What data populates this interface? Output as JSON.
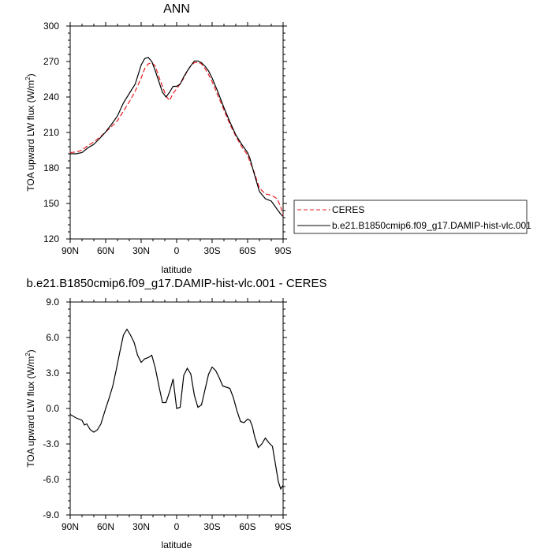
{
  "colors": {
    "ceres": "#e8191e",
    "model": "#000000",
    "axis": "#000000"
  },
  "chart_data": [
    {
      "type": "line",
      "title": "ANN",
      "xlabel": "latitude",
      "ylabel": "TOA upward LW flux (W/m²)",
      "ylabel_main": "TOA upward LW flux (W/m",
      "ylabel_sup": "2",
      "ylabel_tail": ")",
      "xlim": [
        90,
        -90
      ],
      "ylim": [
        120,
        300
      ],
      "xticks": [
        90,
        60,
        30,
        0,
        -30,
        -60,
        -90
      ],
      "xtick_labels": [
        "90N",
        "60N",
        "30N",
        "0",
        "30S",
        "60S",
        "90S"
      ],
      "yticks": [
        120,
        150,
        180,
        210,
        240,
        270,
        300
      ],
      "ytick_labels": [
        "120",
        "150",
        "180",
        "210",
        "240",
        "270",
        "300"
      ],
      "legend": {
        "position": "right",
        "entries": [
          "CERES",
          "b.e21.B1850cmip6.f09_g17.DAMIP-hist-vlc.001"
        ]
      },
      "series": [
        {
          "name": "CERES",
          "style": "dashed",
          "x": [
            90,
            85,
            80,
            75,
            70,
            65,
            60,
            55,
            50,
            45,
            40,
            35,
            30,
            27,
            24,
            21,
            18,
            15,
            12,
            9,
            6,
            3,
            0,
            -3,
            -6,
            -9,
            -12,
            -15,
            -18,
            -21,
            -24,
            -27,
            -30,
            -35,
            -40,
            -45,
            -50,
            -55,
            -60,
            -62,
            -65,
            -70,
            -75,
            -80,
            -85,
            -88,
            -90
          ],
          "y": [
            193,
            193.5,
            195,
            199,
            202,
            206,
            210.5,
            215,
            220,
            228,
            236,
            245,
            256,
            264,
            268,
            269,
            266,
            257,
            249,
            241,
            237,
            243,
            247,
            251,
            256,
            262,
            266.5,
            269,
            269.5,
            268,
            264,
            259,
            253,
            241,
            229,
            217,
            207,
            198,
            191,
            185,
            178,
            163,
            158,
            157,
            154,
            147,
            140
          ]
        },
        {
          "name": "b.e21.B1850cmip6.f09_g17.DAMIP-hist-vlc.001",
          "style": "solid",
          "x": [
            90,
            85,
            80,
            75,
            70,
            65,
            60,
            55,
            50,
            45,
            40,
            35,
            30,
            27,
            24,
            21,
            18,
            15,
            12,
            9,
            6,
            3,
            0,
            -3,
            -6,
            -9,
            -12,
            -15,
            -18,
            -21,
            -24,
            -27,
            -30,
            -35,
            -40,
            -45,
            -50,
            -55,
            -60,
            -62,
            -65,
            -70,
            -75,
            -80,
            -85,
            -88,
            -90
          ],
          "y": [
            192,
            192,
            193,
            197,
            200,
            205,
            210.5,
            217,
            224,
            235,
            243,
            251,
            267,
            272.5,
            273.5,
            270,
            262,
            253,
            244,
            240,
            244,
            249,
            249,
            251,
            257,
            262,
            266.5,
            270.5,
            270.5,
            269,
            266,
            262,
            256,
            244,
            231,
            219,
            208,
            200,
            193,
            188,
            177,
            160,
            154,
            152,
            145,
            141,
            139
          ]
        }
      ]
    },
    {
      "type": "line",
      "title": "b.e21.B1850cmip6.f09_g17.DAMIP-hist-vlc.001 - CERES",
      "xlabel": "latitude",
      "ylabel": "TOA upward LW flux (W/m²)",
      "ylabel_main": "TOA upward LW flux (W/m",
      "ylabel_sup": "2",
      "ylabel_tail": ")",
      "xlim": [
        90,
        -90
      ],
      "ylim": [
        -9,
        9
      ],
      "xticks": [
        90,
        60,
        30,
        0,
        -30,
        -60,
        -90
      ],
      "xtick_labels": [
        "90N",
        "60N",
        "30N",
        "0",
        "30S",
        "60S",
        "90S"
      ],
      "yticks": [
        -9,
        -6,
        -3,
        0,
        3,
        6,
        9
      ],
      "ytick_labels": [
        "-9.0",
        "-6.0",
        "-3.0",
        "0.0",
        "3.0",
        "6.0",
        "9.0"
      ],
      "series": [
        {
          "style": "solid",
          "x": [
            90,
            85,
            80,
            78,
            76,
            73,
            70,
            67,
            64,
            60,
            57,
            54,
            51,
            48,
            45,
            42,
            39,
            36,
            33,
            30,
            27,
            24,
            21,
            18,
            15,
            12,
            9,
            6,
            3,
            0,
            -3,
            -6,
            -9,
            -12,
            -15,
            -18,
            -21,
            -24,
            -27,
            -30,
            -33,
            -36,
            -39,
            -42,
            -45,
            -48,
            -51,
            -54,
            -57,
            -60,
            -62,
            -64,
            -66,
            -69,
            -72,
            -75,
            -78,
            -81,
            -84,
            -86,
            -88,
            -90
          ],
          "y": [
            -0.5,
            -0.8,
            -1.0,
            -1.4,
            -1.3,
            -1.8,
            -2.0,
            -1.8,
            -1.3,
            0.0,
            0.9,
            1.9,
            3.3,
            4.8,
            6.2,
            6.7,
            6.2,
            5.6,
            4.5,
            3.9,
            4.2,
            4.3,
            4.5,
            3.4,
            1.9,
            0.5,
            0.5,
            1.4,
            2.5,
            0.0,
            0.1,
            2.8,
            3.4,
            2.9,
            1.1,
            0.1,
            0.3,
            1.6,
            2.9,
            3.5,
            3.2,
            2.6,
            1.9,
            1.8,
            1.7,
            0.9,
            -0.2,
            -1.1,
            -1.2,
            -0.9,
            -1.0,
            -1.5,
            -2.4,
            -3.3,
            -3.0,
            -2.5,
            -2.9,
            -3.2,
            -5.0,
            -6.2,
            -6.8,
            -6.5
          ]
        }
      ]
    }
  ]
}
